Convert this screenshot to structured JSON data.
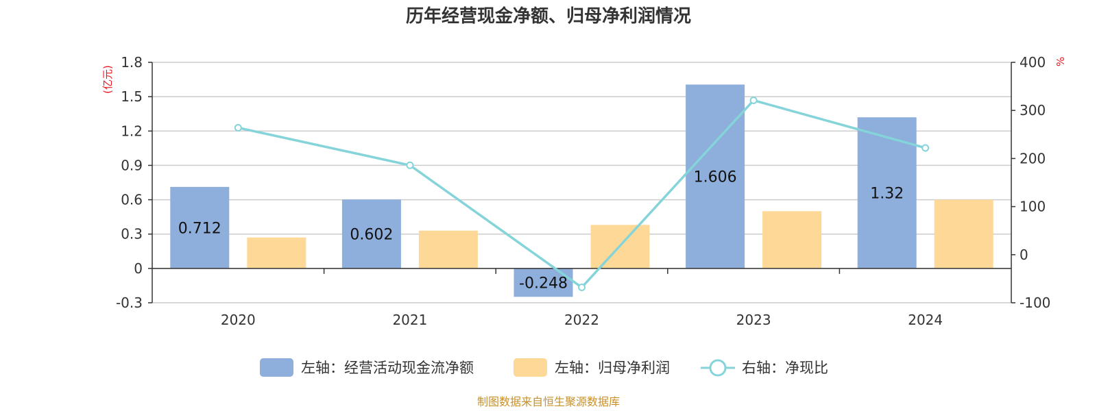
{
  "colors": {
    "bar1": "#8eaedb",
    "bar2": "#fed897",
    "line": "#84d4da",
    "grid": "#cccccc",
    "axis": "#333333",
    "unit": "#e8161b",
    "source": "#c8902a"
  },
  "chart_data": {
    "type": "bar",
    "title": "历年经营现金净额、归母净利润情况",
    "categories": [
      "2020",
      "2021",
      "2022",
      "2023",
      "2024"
    ],
    "left_axis": {
      "unit": "(亿元)",
      "ylim": [
        -0.3,
        1.8
      ],
      "ticks": [
        "1.8",
        "1.5",
        "1.2",
        "0.9",
        "0.6",
        "0.3",
        "0",
        "-0.3"
      ]
    },
    "right_axis": {
      "unit": "%",
      "ylim": [
        -100,
        400
      ],
      "ticks": [
        "400",
        "300",
        "200",
        "100",
        "0",
        "-100"
      ]
    },
    "grid": true,
    "legend_position": "bottom",
    "series": [
      {
        "name": "左轴：经营活动现金流净额",
        "kind": "bar",
        "axis": "left",
        "values": [
          0.712,
          0.602,
          -0.248,
          1.606,
          1.32
        ],
        "labels": [
          "0.712",
          "0.602",
          "-0.248",
          "1.606",
          "1.32"
        ]
      },
      {
        "name": "左轴：归母净利润",
        "kind": "bar",
        "axis": "left",
        "values": [
          0.27,
          0.33,
          0.38,
          0.5,
          0.6
        ]
      },
      {
        "name": "右轴：净现比",
        "kind": "line",
        "axis": "right",
        "values": [
          264,
          186,
          -68,
          321,
          222
        ]
      }
    ]
  },
  "source": "制图数据来自恒生聚源数据库"
}
